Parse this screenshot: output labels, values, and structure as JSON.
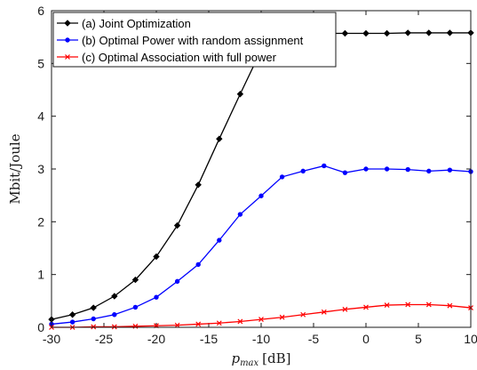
{
  "chart_data": {
    "type": "line",
    "title": "",
    "xlabel": "p",
    "xlabel_subscript": "max",
    "xlabel_unit": "[dB]",
    "ylabel": "Mbit/Joule",
    "xlim": [
      -30,
      10
    ],
    "ylim": [
      0,
      6
    ],
    "xticks": [
      -30,
      -25,
      -20,
      -15,
      -10,
      -5,
      0,
      5,
      10
    ],
    "yticks": [
      0,
      1,
      2,
      3,
      4,
      5,
      6
    ],
    "grid": false,
    "legend_position": "top-left",
    "x": [
      -30,
      -28,
      -26,
      -24,
      -22,
      -20,
      -18,
      -16,
      -14,
      -12,
      -10,
      -8,
      -6,
      -4,
      -2,
      0,
      2,
      4,
      6,
      8,
      10
    ],
    "series": [
      {
        "name": "(a) Joint Optimization",
        "color": "#000000",
        "marker": "diamond",
        "values": [
          0.15,
          0.24,
          0.37,
          0.59,
          0.9,
          1.34,
          1.93,
          2.7,
          3.57,
          4.42,
          5.25,
          5.5,
          5.55,
          5.57,
          5.57,
          5.57,
          5.57,
          5.58,
          5.58,
          5.58,
          5.58
        ]
      },
      {
        "name": "(b) Optimal Power with random assignment",
        "color": "#0000ff",
        "marker": "circle",
        "values": [
          0.06,
          0.1,
          0.16,
          0.24,
          0.38,
          0.57,
          0.87,
          1.19,
          1.65,
          2.14,
          2.49,
          2.85,
          2.96,
          3.06,
          2.93,
          3.0,
          3.0,
          2.99,
          2.96,
          2.98,
          2.95
        ]
      },
      {
        "name": "(c) Optimal Association with full power",
        "color": "#ff0000",
        "marker": "x",
        "values": [
          0.0,
          0.0,
          0.01,
          0.01,
          0.02,
          0.03,
          0.04,
          0.06,
          0.08,
          0.11,
          0.15,
          0.19,
          0.24,
          0.29,
          0.34,
          0.38,
          0.42,
          0.43,
          0.43,
          0.41,
          0.37
        ]
      }
    ]
  }
}
